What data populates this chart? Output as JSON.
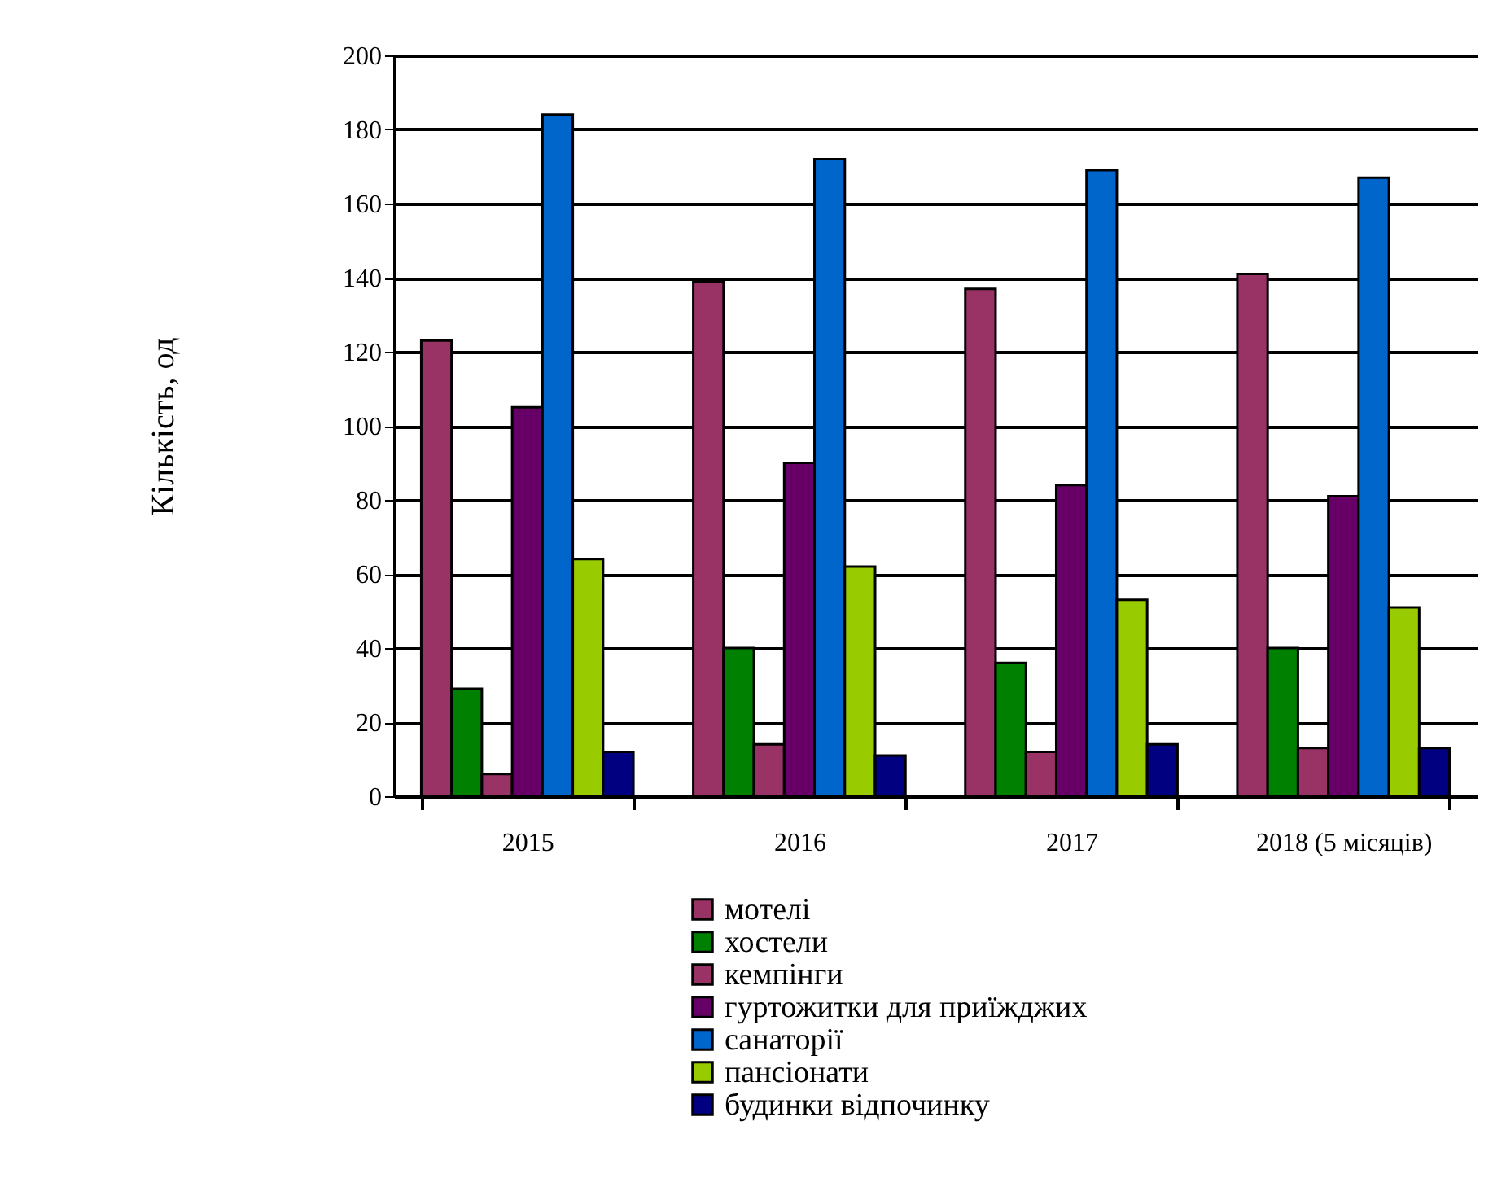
{
  "chart_data": {
    "type": "bar",
    "ylabel": "Кількість, од",
    "categories": [
      "2015",
      "2016",
      "2017",
      "2018 (5 місяців)"
    ],
    "series": [
      {
        "name": "мотелі",
        "color": "#993366",
        "values": [
          123,
          139,
          137,
          141
        ]
      },
      {
        "name": "хостели",
        "color": "#008000",
        "values": [
          29,
          40,
          36,
          40
        ]
      },
      {
        "name": "кемпінги",
        "color": "#993366",
        "values": [
          6,
          14,
          12,
          13
        ]
      },
      {
        "name": "гуртожитки для приїжджих",
        "color": "#660066",
        "values": [
          105,
          90,
          84,
          81
        ]
      },
      {
        "name": "санаторії",
        "color": "#0066cc",
        "values": [
          184,
          172,
          169,
          167
        ]
      },
      {
        "name": "пансіонати",
        "color": "#99cc00",
        "values": [
          64,
          62,
          53,
          51
        ]
      },
      {
        "name": "будинки відпочинку",
        "color": "#000080",
        "values": [
          12,
          11,
          14,
          13
        ]
      }
    ],
    "ylim": [
      0,
      200
    ],
    "yticks": [
      0,
      20,
      40,
      60,
      80,
      100,
      120,
      140,
      160,
      180,
      200
    ],
    "grid": "y",
    "legend": "bottom"
  }
}
